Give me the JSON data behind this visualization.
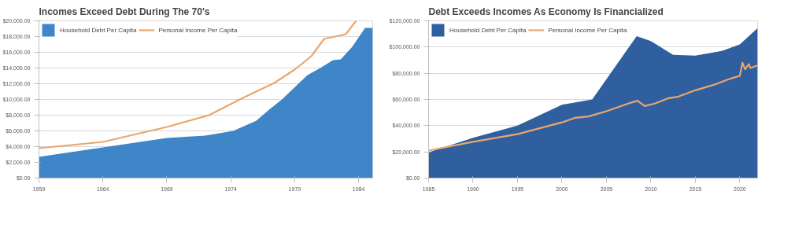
{
  "chart_data": [
    {
      "type": "area",
      "title": "Incomes Exceed Debt During The 70's",
      "xlim": [
        1959,
        1985.1
      ],
      "xticks": [
        1959,
        1964,
        1969,
        1974,
        1979,
        1984
      ],
      "ylim": [
        0,
        20000
      ],
      "yticks": [
        {
          "value": 0,
          "label": "$0.00"
        },
        {
          "value": 2000,
          "label": "$2,000.00"
        },
        {
          "value": 4000,
          "label": "$4,000.00"
        },
        {
          "value": 6000,
          "label": "$6,000.00"
        },
        {
          "value": 8000,
          "label": "$8,000.00"
        },
        {
          "value": 10000,
          "label": "$10,000.00"
        },
        {
          "value": 12000,
          "label": "$12,000.00"
        },
        {
          "value": 14000,
          "label": "$14,000.00"
        },
        {
          "value": 16000,
          "label": "$16,000.00"
        },
        {
          "value": 18000,
          "label": "$18,000.00"
        },
        {
          "value": 20000,
          "label": "$20,000.00"
        }
      ],
      "grid": "y",
      "legend": "top left",
      "series": [
        {
          "name": "Household Debt Per Capita",
          "color": "#3f86c8",
          "x": [
            1959,
            1964,
            1969,
            1972,
            1974.2,
            1976,
            1977,
            1978,
            1980,
            1981,
            1982,
            1982.6,
            1983.5,
            1984.5,
            1985.1
          ],
          "values": [
            2700,
            3900,
            5100,
            5400,
            6000,
            7300,
            8700,
            10000,
            13100,
            14000,
            15000,
            15100,
            16700,
            19100,
            19100
          ]
        },
        {
          "name": "Personal Income Per Capita",
          "type": "line",
          "color": "#e8a76c",
          "x": [
            1959,
            1964,
            1969,
            1972.3,
            1974.7,
            1977.4,
            1979,
            1980.3,
            1981.3,
            1983,
            1983.8
          ],
          "values": [
            3800,
            4600,
            6500,
            8000,
            10000,
            12100,
            13800,
            15500,
            17700,
            18300,
            20000
          ]
        }
      ]
    },
    {
      "type": "area",
      "title": "Debt Exceeds Incomes As Economy Is Financialized",
      "xlim": [
        1985,
        2022
      ],
      "xticks": [
        1985,
        1990,
        1995,
        2000,
        2005,
        2010,
        2015,
        2020
      ],
      "ylim": [
        0,
        120000
      ],
      "yticks": [
        {
          "value": 0,
          "label": "$0.00"
        },
        {
          "value": 20000,
          "label": "$20,000.00"
        },
        {
          "value": 40000,
          "label": "$40,000.00"
        },
        {
          "value": 60000,
          "label": "$60,000.00"
        },
        {
          "value": 80000,
          "label": "$80,000.00"
        },
        {
          "value": 100000,
          "label": "$100,000.00"
        },
        {
          "value": 120000,
          "label": "$120,000.00"
        }
      ],
      "grid": "y",
      "legend": "top left",
      "series": [
        {
          "name": "Household Debt Per Capita",
          "color": "#2f5f9e",
          "x": [
            1985,
            1990,
            1995,
            2000,
            2003.4,
            2007.7,
            2008.4,
            2010,
            2012.5,
            2015,
            2018,
            2020,
            2022
          ],
          "values": [
            19700,
            30800,
            40000,
            56000,
            60000,
            101500,
            108300,
            104600,
            94000,
            93500,
            97000,
            102000,
            114500
          ]
        },
        {
          "name": "Personal Income Per Capita",
          "type": "line",
          "color": "#e8a76c",
          "x": [
            1985,
            1990,
            1995,
            2000,
            2001.5,
            2003,
            2005,
            2007.5,
            2008.5,
            2009.3,
            2010.5,
            2012,
            2013,
            2015,
            2017,
            2019,
            2020,
            2020.3,
            2020.6,
            2021,
            2021.2,
            2022
          ],
          "values": [
            21000,
            27700,
            33500,
            42500,
            46000,
            47000,
            51000,
            57000,
            59000,
            55000,
            57000,
            61000,
            62000,
            67000,
            71000,
            76000,
            78000,
            88000,
            83000,
            87000,
            84000,
            86000
          ]
        }
      ]
    }
  ]
}
